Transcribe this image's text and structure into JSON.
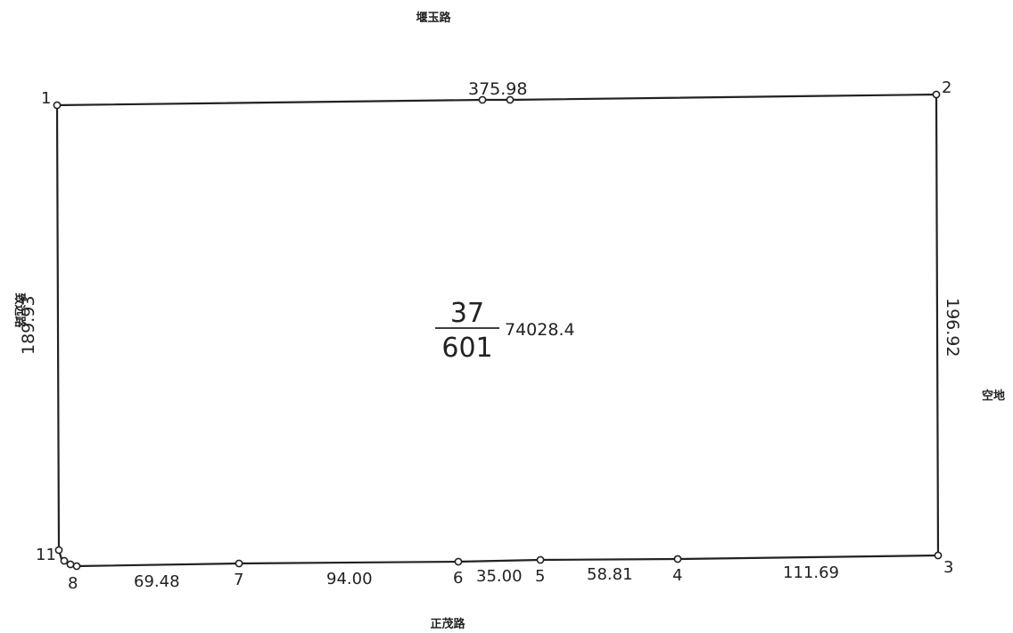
{
  "roads": {
    "north": "堰玉路",
    "south": "正茂路",
    "west": "致远路",
    "east": "空地"
  },
  "parcel": {
    "block_no": "37",
    "lot_no": "601",
    "area": "74028.4"
  },
  "vertices": {
    "v1": "1",
    "v2": "2",
    "v3": "3",
    "v4": "4",
    "v5": "5",
    "v6": "6",
    "v7": "7",
    "v8": "8",
    "v11": "11"
  },
  "edge_lengths": {
    "north": "375.98",
    "east": "196.92",
    "west": "189.93",
    "s_3_4": "111.69",
    "s_4_5": "58.81",
    "s_5_6": "35.00",
    "s_6_7": "94.00",
    "s_7_8": "69.48"
  }
}
